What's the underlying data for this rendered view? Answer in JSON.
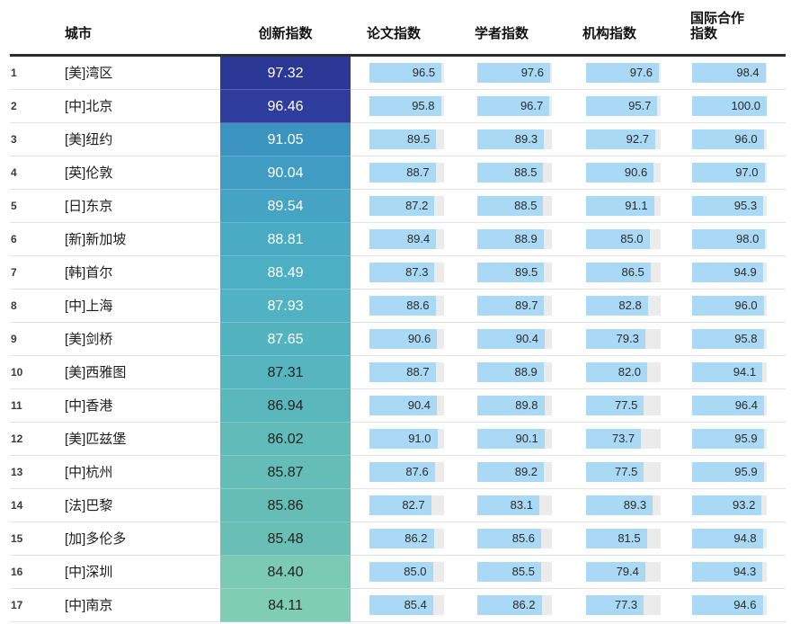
{
  "colors": {
    "bar_fill": "#A9D9F5",
    "bar_track": "#EBEBEB",
    "header_rule": "#2D2D2D",
    "row_separator": "#E3E3E3",
    "light_text": "#FFFFFF",
    "dark_text": "#222222",
    "scale_top": "#2B3895",
    "scale_bottom": "#7FCDB2"
  },
  "chart_data": {
    "type": "table",
    "columns": [
      {
        "key": "rank",
        "label": ""
      },
      {
        "key": "city",
        "label": "城市"
      },
      {
        "key": "innovation",
        "label": "创新指数",
        "style": "colored-cell"
      },
      {
        "key": "paper",
        "label": "论文指数",
        "style": "bar"
      },
      {
        "key": "scholar",
        "label": "学者指数",
        "style": "bar"
      },
      {
        "key": "institution",
        "label": "机构指数",
        "style": "bar"
      },
      {
        "key": "intl",
        "label": "国际合作指数",
        "style": "bar"
      }
    ],
    "bar_scale": {
      "min": 0,
      "max": 100
    },
    "rows": [
      {
        "rank": "1",
        "city": "[美]湾区",
        "innovation": "97.32",
        "paper": "96.5",
        "scholar": "97.6",
        "institution": "97.6",
        "intl": "98.4",
        "cell_color": "#2B3895",
        "value_text": "light"
      },
      {
        "rank": "2",
        "city": "[中]北京",
        "innovation": "96.46",
        "paper": "95.8",
        "scholar": "96.7",
        "institution": "95.7",
        "intl": "100.0",
        "cell_color": "#2F3D9E",
        "value_text": "light"
      },
      {
        "rank": "3",
        "city": "[美]纽约",
        "innovation": "91.05",
        "paper": "89.5",
        "scholar": "89.3",
        "institution": "92.7",
        "intl": "96.0",
        "cell_color": "#3B94BF",
        "value_text": "light"
      },
      {
        "rank": "4",
        "city": "[英]伦敦",
        "innovation": "90.04",
        "paper": "88.7",
        "scholar": "88.5",
        "institution": "90.6",
        "intl": "97.0",
        "cell_color": "#409CC2",
        "value_text": "light"
      },
      {
        "rank": "5",
        "city": "[日]东京",
        "innovation": "89.54",
        "paper": "87.2",
        "scholar": "88.5",
        "institution": "91.1",
        "intl": "95.3",
        "cell_color": "#45A3C3",
        "value_text": "light"
      },
      {
        "rank": "6",
        "city": "[新]新加坡",
        "innovation": "88.81",
        "paper": "89.4",
        "scholar": "88.9",
        "institution": "85.0",
        "intl": "98.0",
        "cell_color": "#4AABC4",
        "value_text": "light"
      },
      {
        "rank": "7",
        "city": "[韩]首尔",
        "innovation": "88.49",
        "paper": "87.3",
        "scholar": "89.5",
        "institution": "86.5",
        "intl": "94.9",
        "cell_color": "#4DAFC3",
        "value_text": "light"
      },
      {
        "rank": "8",
        "city": "[中]上海",
        "innovation": "87.93",
        "paper": "88.6",
        "scholar": "89.7",
        "institution": "82.8",
        "intl": "96.0",
        "cell_color": "#50B2C2",
        "value_text": "light"
      },
      {
        "rank": "9",
        "city": "[美]剑桥",
        "innovation": "87.65",
        "paper": "90.6",
        "scholar": "90.4",
        "institution": "79.3",
        "intl": "95.8",
        "cell_color": "#53B4C0",
        "value_text": "light"
      },
      {
        "rank": "10",
        "city": "[美]西雅图",
        "innovation": "87.31",
        "paper": "88.7",
        "scholar": "88.9",
        "institution": "82.0",
        "intl": "94.1",
        "cell_color": "#56B5BE",
        "value_text": "dark"
      },
      {
        "rank": "11",
        "city": "[中]香港",
        "innovation": "86.94",
        "paper": "90.4",
        "scholar": "89.8",
        "institution": "77.5",
        "intl": "96.4",
        "cell_color": "#5AB7BC",
        "value_text": "dark"
      },
      {
        "rank": "12",
        "city": "[美]匹兹堡",
        "innovation": "86.02",
        "paper": "91.0",
        "scholar": "90.1",
        "institution": "73.7",
        "intl": "95.9",
        "cell_color": "#61BBB9",
        "value_text": "dark"
      },
      {
        "rank": "13",
        "city": "[中]杭州",
        "innovation": "85.87",
        "paper": "87.6",
        "scholar": "89.2",
        "institution": "77.5",
        "intl": "95.9",
        "cell_color": "#64BDB7",
        "value_text": "dark"
      },
      {
        "rank": "14",
        "city": "[法]巴黎",
        "innovation": "85.86",
        "paper": "82.7",
        "scholar": "83.1",
        "institution": "89.3",
        "intl": "93.2",
        "cell_color": "#65BDB6",
        "value_text": "dark"
      },
      {
        "rank": "15",
        "city": "[加]多伦多",
        "innovation": "85.48",
        "paper": "86.2",
        "scholar": "85.6",
        "institution": "81.5",
        "intl": "94.8",
        "cell_color": "#69BFB5",
        "value_text": "dark"
      },
      {
        "rank": "16",
        "city": "[中]深圳",
        "innovation": "84.40",
        "paper": "85.0",
        "scholar": "85.5",
        "institution": "79.4",
        "intl": "94.3",
        "cell_color": "#7ACAB4",
        "value_text": "dark"
      },
      {
        "rank": "17",
        "city": "[中]南京",
        "innovation": "84.11",
        "paper": "85.4",
        "scholar": "86.2",
        "institution": "77.3",
        "intl": "94.6",
        "cell_color": "#7FCDB2",
        "value_text": "dark"
      }
    ]
  }
}
